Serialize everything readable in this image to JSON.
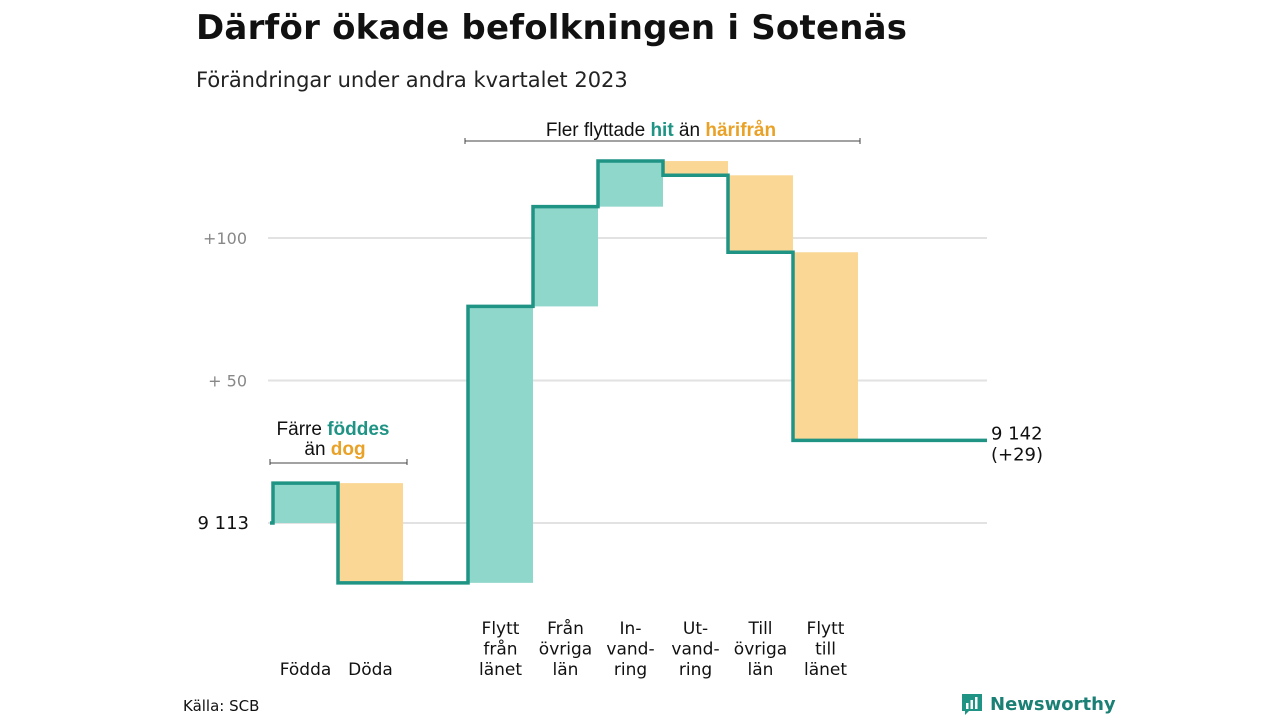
{
  "title": "Därför ökade befolkningen i Sotenäs",
  "subtitle": "Förändringar under andra kvartalet 2023",
  "source": "Källa: SCB",
  "logo_text": "Newsworthy",
  "colors": {
    "inflow": "#8fd6cb",
    "outflow": "#fbd796",
    "line": "#1f9485",
    "accent_text_teal": "#1f9485",
    "accent_text_orange": "#e9a227",
    "grid": "#e2e2e2",
    "tick_text": "#888888"
  },
  "chart_data": {
    "type": "waterfall",
    "baseline": 9113,
    "start_label": "9  113",
    "end_label_1": "9 142",
    "end_label_2": "(+29)",
    "yticks": [
      {
        "value": 9213,
        "label": "+100"
      },
      {
        "value": 9163,
        "label": "+  50"
      }
    ],
    "steps": [
      {
        "label": [
          "Födda"
        ],
        "change": 14,
        "kind": "in"
      },
      {
        "label": [
          "Döda"
        ],
        "change": -35,
        "kind": "out"
      },
      {
        "label": [
          "Flytt",
          "från",
          "länet"
        ],
        "change": 97,
        "kind": "in"
      },
      {
        "label": [
          "Från",
          "övriga",
          "län"
        ],
        "change": 35,
        "kind": "in"
      },
      {
        "label": [
          "In-",
          "vand-",
          "ring"
        ],
        "change": 16,
        "kind": "in"
      },
      {
        "label": [
          "Ut-",
          "vand-",
          "ring"
        ],
        "change": -5,
        "kind": "out"
      },
      {
        "label": [
          "Till",
          "övriga",
          "län"
        ],
        "change": -27,
        "kind": "out"
      },
      {
        "label": [
          "Flytt",
          "till",
          "länet"
        ],
        "change": -66,
        "kind": "out"
      }
    ],
    "annotations": [
      {
        "parts": [
          {
            "text": "Färre ",
            "style": "plain"
          },
          {
            "text": "föddes",
            "style": "teal"
          }
        ],
        "parts2": [
          {
            "text": "än ",
            "style": "plain"
          },
          {
            "text": "dog",
            "style": "orange"
          }
        ]
      },
      {
        "parts": [
          {
            "text": "Fler flyttade ",
            "style": "plain"
          },
          {
            "text": "hit",
            "style": "teal"
          },
          {
            "text": " än ",
            "style": "plain"
          },
          {
            "text": "härifrån",
            "style": "orange"
          }
        ]
      }
    ]
  }
}
